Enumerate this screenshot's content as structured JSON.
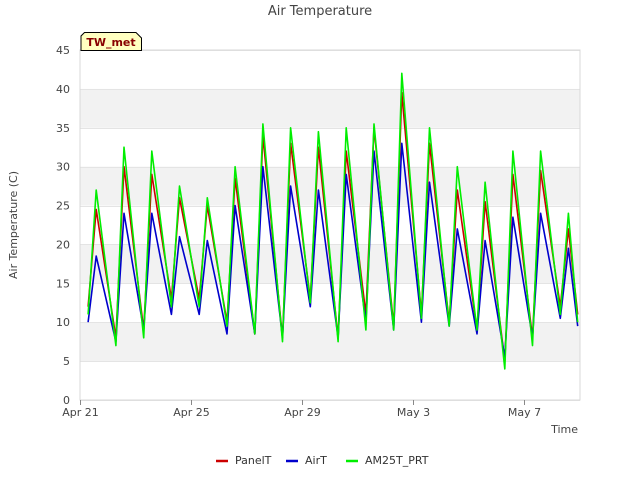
{
  "chart_data": {
    "type": "line",
    "title": "Air Temperature",
    "xlabel": "Time",
    "ylabel": "Air Temperature (C)",
    "ylim": [
      0,
      45
    ],
    "yticks": [
      0,
      5,
      10,
      15,
      20,
      25,
      30,
      35,
      40,
      45
    ],
    "xlim": [
      "2023-04-21",
      "2023-05-09"
    ],
    "xticks": [
      {
        "date": "2023-04-21",
        "label": "Apr 21"
      },
      {
        "date": "2023-04-25",
        "label": "Apr 25"
      },
      {
        "date": "2023-04-29",
        "label": "Apr 29"
      },
      {
        "date": "2023-05-03",
        "label": "May 3"
      },
      {
        "date": "2023-05-07",
        "label": "May 7"
      }
    ],
    "grid": true,
    "banded_background": true,
    "station_label": "TW_met",
    "legend_placement": "bottom",
    "series": [
      {
        "name": "PanelT",
        "color": "#cc0000",
        "points": [
          [
            "2023-04-21 07:00",
            12
          ],
          [
            "2023-04-21 14:00",
            24.5
          ],
          [
            "2023-04-22 07:00",
            8
          ],
          [
            "2023-04-22 14:00",
            30
          ],
          [
            "2023-04-23 07:00",
            9
          ],
          [
            "2023-04-23 14:00",
            29
          ],
          [
            "2023-04-24 07:00",
            13
          ],
          [
            "2023-04-24 14:00",
            26
          ],
          [
            "2023-04-25 07:00",
            13
          ],
          [
            "2023-04-25 14:00",
            25
          ],
          [
            "2023-04-26 07:00",
            10
          ],
          [
            "2023-04-26 14:00",
            28.5
          ],
          [
            "2023-04-27 07:00",
            8.5
          ],
          [
            "2023-04-27 14:00",
            34
          ],
          [
            "2023-04-28 07:00",
            8
          ],
          [
            "2023-04-28 14:00",
            33
          ],
          [
            "2023-04-29 07:00",
            13
          ],
          [
            "2023-04-29 14:00",
            32.5
          ],
          [
            "2023-04-30 07:00",
            8
          ],
          [
            "2023-04-30 14:00",
            32
          ],
          [
            "2023-05-01 07:00",
            11
          ],
          [
            "2023-05-01 14:00",
            35
          ],
          [
            "2023-05-02 07:00",
            9.5
          ],
          [
            "2023-05-02 14:00",
            39.5
          ],
          [
            "2023-05-03 07:00",
            11
          ],
          [
            "2023-05-03 14:00",
            33
          ],
          [
            "2023-05-04 07:00",
            10
          ],
          [
            "2023-05-04 14:00",
            27
          ],
          [
            "2023-05-05 07:00",
            9
          ],
          [
            "2023-05-05 14:00",
            25.5
          ],
          [
            "2023-05-06 07:00",
            5
          ],
          [
            "2023-05-06 14:00",
            29
          ],
          [
            "2023-05-07 07:00",
            8
          ],
          [
            "2023-05-07 14:00",
            29.5
          ],
          [
            "2023-05-08 07:00",
            12
          ],
          [
            "2023-05-08 14:00",
            22
          ],
          [
            "2023-05-08 22:00",
            11
          ]
        ]
      },
      {
        "name": "AirT",
        "color": "#0000cc",
        "points": [
          [
            "2023-04-21 07:00",
            10
          ],
          [
            "2023-04-21 14:00",
            18.5
          ],
          [
            "2023-04-22 07:00",
            7.5
          ],
          [
            "2023-04-22 14:00",
            24
          ],
          [
            "2023-04-23 07:00",
            9
          ],
          [
            "2023-04-23 14:00",
            24
          ],
          [
            "2023-04-24 07:00",
            11
          ],
          [
            "2023-04-24 14:00",
            21
          ],
          [
            "2023-04-25 07:00",
            11
          ],
          [
            "2023-04-25 14:00",
            20.5
          ],
          [
            "2023-04-26 07:00",
            8.5
          ],
          [
            "2023-04-26 14:00",
            25
          ],
          [
            "2023-04-27 07:00",
            8.5
          ],
          [
            "2023-04-27 14:00",
            30
          ],
          [
            "2023-04-28 07:00",
            8
          ],
          [
            "2023-04-28 14:00",
            27.5
          ],
          [
            "2023-04-29 07:00",
            12
          ],
          [
            "2023-04-29 14:00",
            27
          ],
          [
            "2023-04-30 07:00",
            8
          ],
          [
            "2023-04-30 14:00",
            29
          ],
          [
            "2023-05-01 07:00",
            10
          ],
          [
            "2023-05-01 14:00",
            32
          ],
          [
            "2023-05-02 07:00",
            9
          ],
          [
            "2023-05-02 14:00",
            33
          ],
          [
            "2023-05-03 07:00",
            10
          ],
          [
            "2023-05-03 14:00",
            28
          ],
          [
            "2023-05-04 07:00",
            9.5
          ],
          [
            "2023-05-04 14:00",
            22
          ],
          [
            "2023-05-05 07:00",
            8.5
          ],
          [
            "2023-05-05 14:00",
            20.5
          ],
          [
            "2023-05-06 07:00",
            5.5
          ],
          [
            "2023-05-06 14:00",
            23.5
          ],
          [
            "2023-05-07 07:00",
            8
          ],
          [
            "2023-05-07 14:00",
            24
          ],
          [
            "2023-05-08 07:00",
            10.5
          ],
          [
            "2023-05-08 14:00",
            19.5
          ],
          [
            "2023-05-08 22:00",
            9.5
          ]
        ]
      },
      {
        "name": "AM25T_PRT",
        "color": "#00ee00",
        "points": [
          [
            "2023-04-21 07:00",
            11
          ],
          [
            "2023-04-21 14:00",
            27
          ],
          [
            "2023-04-22 07:00",
            7
          ],
          [
            "2023-04-22 14:00",
            32.5
          ],
          [
            "2023-04-23 07:00",
            8
          ],
          [
            "2023-04-23 14:00",
            32
          ],
          [
            "2023-04-24 07:00",
            12
          ],
          [
            "2023-04-24 14:00",
            27.5
          ],
          [
            "2023-04-25 07:00",
            12
          ],
          [
            "2023-04-25 14:00",
            26
          ],
          [
            "2023-04-26 07:00",
            9.5
          ],
          [
            "2023-04-26 14:00",
            30
          ],
          [
            "2023-04-27 07:00",
            8.5
          ],
          [
            "2023-04-27 14:00",
            35.5
          ],
          [
            "2023-04-28 07:00",
            7.5
          ],
          [
            "2023-04-28 14:00",
            35
          ],
          [
            "2023-04-29 07:00",
            12.5
          ],
          [
            "2023-04-29 14:00",
            34.5
          ],
          [
            "2023-04-30 07:00",
            7.5
          ],
          [
            "2023-04-30 14:00",
            35
          ],
          [
            "2023-05-01 07:00",
            9
          ],
          [
            "2023-05-01 14:00",
            35.5
          ],
          [
            "2023-05-02 07:00",
            9
          ],
          [
            "2023-05-02 14:00",
            42
          ],
          [
            "2023-05-03 07:00",
            10.5
          ],
          [
            "2023-05-03 14:00",
            35
          ],
          [
            "2023-05-04 07:00",
            9.5
          ],
          [
            "2023-05-04 14:00",
            30
          ],
          [
            "2023-05-05 07:00",
            9
          ],
          [
            "2023-05-05 14:00",
            28
          ],
          [
            "2023-05-06 07:00",
            4
          ],
          [
            "2023-05-06 14:00",
            32
          ],
          [
            "2023-05-07 07:00",
            7
          ],
          [
            "2023-05-07 14:00",
            32
          ],
          [
            "2023-05-08 07:00",
            11
          ],
          [
            "2023-05-08 14:00",
            24
          ],
          [
            "2023-05-08 22:00",
            10
          ]
        ]
      }
    ]
  }
}
